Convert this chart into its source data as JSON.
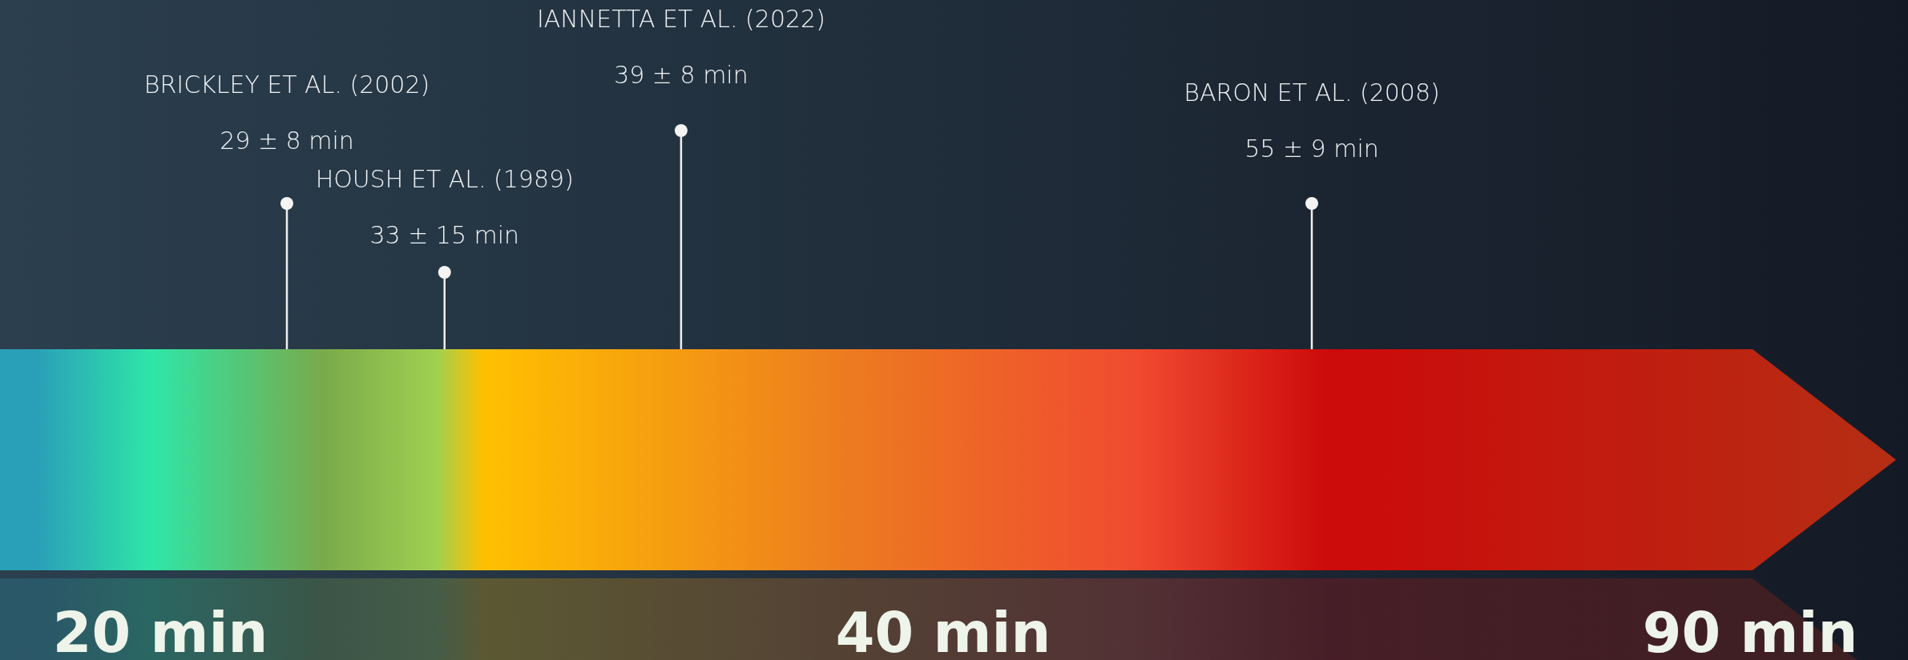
{
  "chart_data": {
    "type": "other",
    "categories": [
      "BRICKLEY ET AL. (2002)",
      "HOUSH ET AL. (1989)",
      "IANNETTA ET AL. (2022)",
      "BARON ET AL. (2008)"
    ],
    "values": [
      29,
      33,
      39,
      55
    ],
    "value_labels": [
      "29 ± 8 min",
      "33 ± 15 min",
      "39 ± 8 min",
      "55 ± 9 min"
    ],
    "annotations": [
      "20 min",
      "40 min",
      "90 min"
    ]
  }
}
